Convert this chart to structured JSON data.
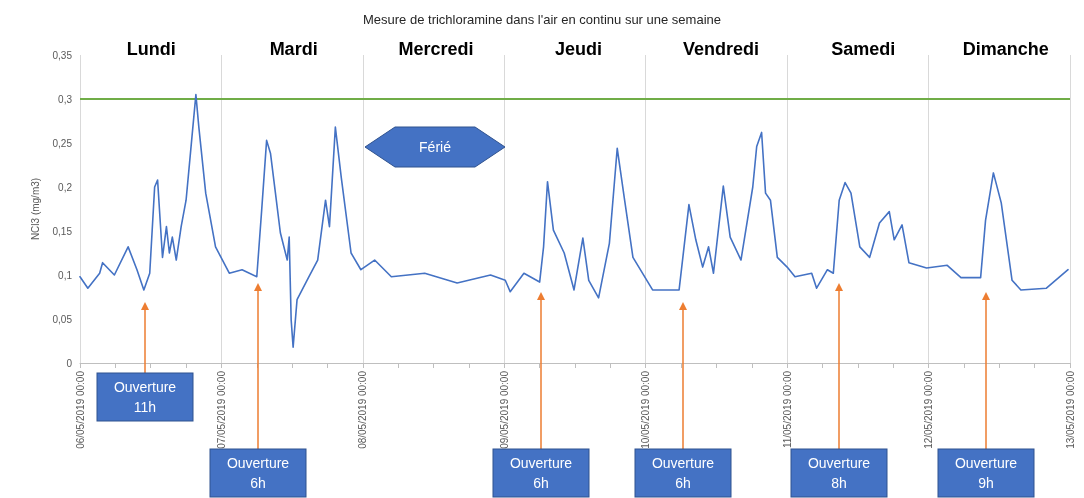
{
  "chart_data": {
    "type": "line",
    "title": "Mesure de trichloramine dans l'air en continu sur une semaine",
    "ylabel": "NCl3 (mg/m3)",
    "xlim": [
      "2019-05-06T00:00",
      "2019-05-13T00:00"
    ],
    "xticks": [
      {
        "value": "2019-05-06T00:00",
        "label": "06/05/2019 00:00"
      },
      {
        "value": "2019-05-06T06:00",
        "label": null
      },
      {
        "value": "2019-05-06T12:00",
        "label": null
      },
      {
        "value": "2019-05-06T18:00",
        "label": null
      },
      {
        "value": "2019-05-07T00:00",
        "label": "07/05/2019 00:00"
      },
      {
        "value": "2019-05-07T06:00",
        "label": null
      },
      {
        "value": "2019-05-07T12:00",
        "label": null
      },
      {
        "value": "2019-05-07T18:00",
        "label": null
      },
      {
        "value": "2019-05-08T00:00",
        "label": "08/05/2019 00:00"
      },
      {
        "value": "2019-05-08T06:00",
        "label": null
      },
      {
        "value": "2019-05-08T12:00",
        "label": null
      },
      {
        "value": "2019-05-08T18:00",
        "label": null
      },
      {
        "value": "2019-05-09T00:00",
        "label": "09/05/2019 00:00"
      },
      {
        "value": "2019-05-09T06:00",
        "label": null
      },
      {
        "value": "2019-05-09T12:00",
        "label": null
      },
      {
        "value": "2019-05-09T18:00",
        "label": null
      },
      {
        "value": "2019-05-10T00:00",
        "label": "10/05/2019 00:00"
      },
      {
        "value": "2019-05-10T06:00",
        "label": null
      },
      {
        "value": "2019-05-10T12:00",
        "label": null
      },
      {
        "value": "2019-05-10T18:00",
        "label": null
      },
      {
        "value": "2019-05-11T00:00",
        "label": "11/05/2019 00:00"
      },
      {
        "value": "2019-05-11T06:00",
        "label": null
      },
      {
        "value": "2019-05-11T12:00",
        "label": null
      },
      {
        "value": "2019-05-11T18:00",
        "label": null
      },
      {
        "value": "2019-05-12T00:00",
        "label": "12/05/2019 00:00"
      },
      {
        "value": "2019-05-12T06:00",
        "label": null
      },
      {
        "value": "2019-05-12T12:00",
        "label": null
      },
      {
        "value": "2019-05-12T18:00",
        "label": null
      },
      {
        "value": "2019-05-13T00:00",
        "label": "13/05/2019 00:00"
      }
    ],
    "ylim": [
      0,
      0.35
    ],
    "yticks": [
      0,
      {
        "value": 0.05,
        "label": "0,05"
      },
      {
        "value": 0.1,
        "label": "0,1"
      },
      {
        "value": 0.15,
        "label": "0,15"
      },
      {
        "value": 0.2,
        "label": "0,2"
      },
      {
        "value": 0.25,
        "label": "0,25"
      },
      {
        "value": 0.3,
        "label": "0,3"
      },
      {
        "value": 0.35,
        "label": "0,35"
      }
    ],
    "grid": "x",
    "marker": "none",
    "line_style": "solid",
    "ref_lines": [
      {
        "axis": "y",
        "value": 0.3,
        "color": "#70ad47"
      }
    ],
    "annotations": [
      "Lundi",
      "Mardi",
      "Mercredi",
      "Jeudi",
      "Vendredi",
      "Samedi",
      "Dimanche",
      "Férié",
      "Ouverture\n11h",
      "Ouverture\n6h",
      "Ouverture\n6h",
      "Ouverture\n6h",
      "Ouverture\n8h",
      "Ouverture\n9h"
    ],
    "series": [
      {
        "color": "#4472c4",
        "x": [
          "2019-05-06T00:00",
          "2019-05-06T01:20",
          "2019-05-06T03:20",
          "2019-05-06T03:50",
          "2019-05-06T05:50",
          "2019-05-06T08:10",
          "2019-05-06T09:40",
          "2019-05-06T10:50",
          "2019-05-06T11:50",
          "2019-05-06T12:40",
          "2019-05-06T13:10",
          "2019-05-06T14:00",
          "2019-05-06T14:40",
          "2019-05-06T15:10",
          "2019-05-06T15:40",
          "2019-05-06T16:20",
          "2019-05-06T17:10",
          "2019-05-06T18:00",
          "2019-05-06T19:00",
          "2019-05-06T19:40",
          "2019-05-06T20:10",
          "2019-05-06T21:20",
          "2019-05-06T23:00",
          "2019-05-07T01:20",
          "2019-05-07T03:30",
          "2019-05-07T06:00",
          "2019-05-07T06:50",
          "2019-05-07T07:40",
          "2019-05-07T08:20",
          "2019-05-07T09:10",
          "2019-05-07T10:00",
          "2019-05-07T11:10",
          "2019-05-07T11:30",
          "2019-05-07T11:50",
          "2019-05-07T12:10",
          "2019-05-07T12:50",
          "2019-05-07T14:50",
          "2019-05-07T16:20",
          "2019-05-07T17:40",
          "2019-05-07T18:20",
          "2019-05-07T19:20",
          "2019-05-07T20:20",
          "2019-05-07T22:00",
          "2019-05-07T23:40",
          "2019-05-08T02:00",
          "2019-05-08T04:50",
          "2019-05-08T10:30",
          "2019-05-08T16:00",
          "2019-05-08T21:40",
          "2019-05-09T00:10",
          "2019-05-09T01:00",
          "2019-05-09T03:20",
          "2019-05-09T06:00",
          "2019-05-09T06:40",
          "2019-05-09T07:20",
          "2019-05-09T08:20",
          "2019-05-09T10:10",
          "2019-05-09T11:50",
          "2019-05-09T13:20",
          "2019-05-09T14:20",
          "2019-05-09T16:00",
          "2019-05-09T17:50",
          "2019-05-09T19:10",
          "2019-05-09T20:20",
          "2019-05-09T21:50",
          "2019-05-10T01:10",
          "2019-05-10T05:40",
          "2019-05-10T07:20",
          "2019-05-10T08:30",
          "2019-05-10T09:40",
          "2019-05-10T10:40",
          "2019-05-10T11:30",
          "2019-05-10T13:10",
          "2019-05-10T14:20",
          "2019-05-10T16:10",
          "2019-05-10T18:10",
          "2019-05-10T18:50",
          "2019-05-10T19:40",
          "2019-05-10T20:20",
          "2019-05-10T21:10",
          "2019-05-10T22:20",
          "2019-05-11T00:00",
          "2019-05-11T01:20",
          "2019-05-11T04:10",
          "2019-05-11T05:00",
          "2019-05-11T06:50",
          "2019-05-11T07:50",
          "2019-05-11T08:50",
          "2019-05-11T09:50",
          "2019-05-11T10:50",
          "2019-05-11T12:20",
          "2019-05-11T14:00",
          "2019-05-11T15:40",
          "2019-05-11T17:20",
          "2019-05-11T18:10",
          "2019-05-11T19:30",
          "2019-05-11T20:40",
          "2019-05-11T23:40",
          "2019-05-12T03:10",
          "2019-05-12T05:30",
          "2019-05-12T08:50",
          "2019-05-12T09:40",
          "2019-05-12T11:00",
          "2019-05-12T12:20",
          "2019-05-12T14:10",
          "2019-05-12T15:40",
          "2019-05-12T20:00",
          "2019-05-12T23:40"
        ],
        "values": [
          0.098,
          0.085,
          0.102,
          0.114,
          0.1,
          0.132,
          0.106,
          0.083,
          0.102,
          0.2,
          0.208,
          0.12,
          0.155,
          0.125,
          0.143,
          0.117,
          0.155,
          0.185,
          0.257,
          0.305,
          0.268,
          0.193,
          0.132,
          0.102,
          0.106,
          0.098,
          0.174,
          0.253,
          0.238,
          0.193,
          0.148,
          0.117,
          0.143,
          0.049,
          0.018,
          0.072,
          0.098,
          0.117,
          0.185,
          0.155,
          0.268,
          0.211,
          0.125,
          0.106,
          0.117,
          0.098,
          0.102,
          0.091,
          0.1,
          0.094,
          0.081,
          0.102,
          0.092,
          0.132,
          0.206,
          0.151,
          0.125,
          0.083,
          0.142,
          0.094,
          0.074,
          0.136,
          0.244,
          0.189,
          0.12,
          0.083,
          0.083,
          0.18,
          0.14,
          0.109,
          0.132,
          0.102,
          0.201,
          0.143,
          0.117,
          0.2,
          0.246,
          0.262,
          0.193,
          0.185,
          0.12,
          0.109,
          0.098,
          0.102,
          0.085,
          0.106,
          0.102,
          0.185,
          0.205,
          0.193,
          0.132,
          0.12,
          0.159,
          0.172,
          0.14,
          0.157,
          0.114,
          0.108,
          0.111,
          0.097,
          0.097,
          0.162,
          0.216,
          0.182,
          0.094,
          0.083,
          0.085,
          0.106
        ]
      }
    ]
  }
}
